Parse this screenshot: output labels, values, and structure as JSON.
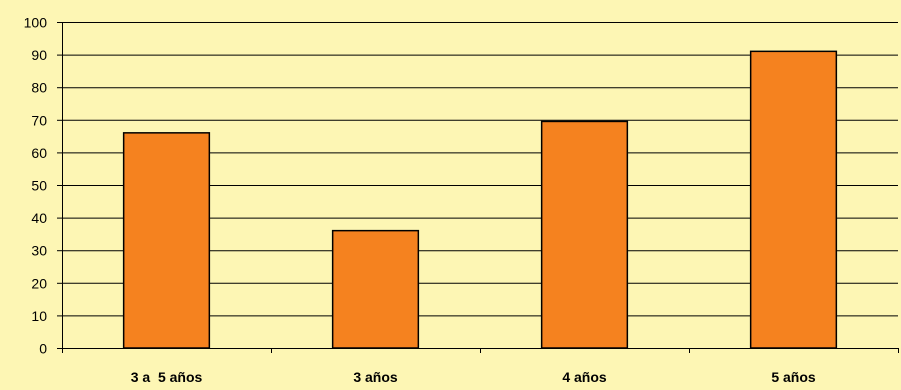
{
  "chart_data": {
    "type": "bar",
    "categories": [
      "3 a  5 años",
      "3 años",
      "4 años",
      "5 años"
    ],
    "values": [
      66,
      36,
      69.5,
      91
    ],
    "title": "",
    "xlabel": "",
    "ylabel": "",
    "ylim": [
      0,
      100
    ],
    "yticks": [
      0,
      10,
      20,
      30,
      40,
      50,
      60,
      70,
      80,
      90,
      100
    ],
    "grid": true,
    "legend": "none"
  },
  "colors": {
    "background": "#fdf6b4",
    "bar_fill": "#f5821f",
    "bar_stroke": "#000000",
    "grid": "#000000"
  }
}
